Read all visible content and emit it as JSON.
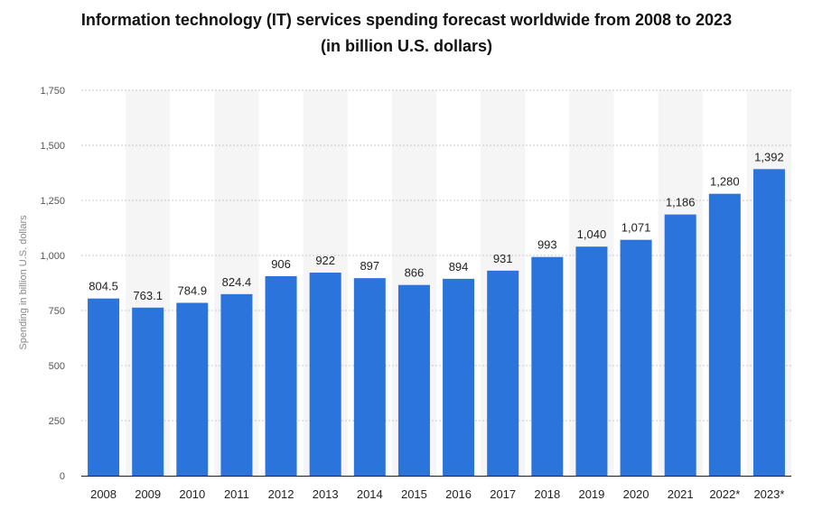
{
  "title_line1": "Information technology (IT) services spending forecast worldwide from 2008 to 2023",
  "title_line2": "(in billion U.S. dollars)",
  "chart_data": {
    "type": "bar",
    "title": "Information technology (IT) services spending forecast worldwide from 2008 to 2023 (in billion U.S. dollars)",
    "xlabel": "",
    "ylabel": "Spending in billion U.S. dollars",
    "ylim": [
      0,
      1750
    ],
    "yticks": [
      0,
      250,
      500,
      750,
      1000,
      1250,
      1500,
      1750
    ],
    "ytick_labels": [
      "0",
      "250",
      "500",
      "750",
      "1,000",
      "1,250",
      "1,500",
      "1,750"
    ],
    "grid": true,
    "categories": [
      "2008",
      "2009",
      "2010",
      "2011",
      "2012",
      "2013",
      "2014",
      "2015",
      "2016",
      "2017",
      "2018",
      "2019",
      "2020",
      "2021",
      "2022*",
      "2023*"
    ],
    "values": [
      804.5,
      763.1,
      784.9,
      824.4,
      906,
      922,
      897,
      866,
      894,
      931,
      993,
      1040,
      1071,
      1186,
      1280,
      1392
    ],
    "value_labels": [
      "804.5",
      "763.1",
      "784.9",
      "824.4",
      "906",
      "922",
      "897",
      "866",
      "894",
      "931",
      "993",
      "1,040",
      "1,071",
      "1,186",
      "1,280",
      "1,392"
    ],
    "bar_color": "#2a74db",
    "band_color": "#f5f5f5"
  }
}
